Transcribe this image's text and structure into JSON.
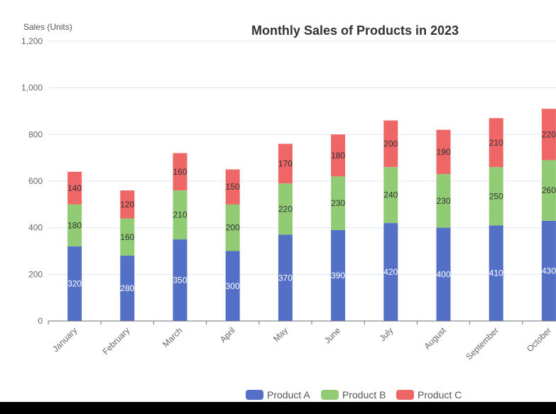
{
  "chart_data": {
    "type": "bar",
    "stacked": true,
    "title": "Monthly Sales of Products in 2023",
    "ylabel": "Sales (Units)",
    "xlabel": "",
    "ylim": [
      0,
      1200
    ],
    "yticks": [
      0,
      200,
      400,
      600,
      800,
      1000,
      1200
    ],
    "ytick_labels": [
      "0",
      "200",
      "400",
      "600",
      "800",
      "1,000",
      "1,200"
    ],
    "grid": true,
    "legend_position": "bottom-center",
    "categories": [
      "January",
      "February",
      "March",
      "April",
      "May",
      "June",
      "July",
      "August",
      "September",
      "October"
    ],
    "series": [
      {
        "name": "Product A",
        "color": "#5470c6",
        "label_color": "#ffffff",
        "values": [
          320,
          280,
          350,
          300,
          370,
          390,
          420,
          400,
          410,
          430
        ]
      },
      {
        "name": "Product B",
        "color": "#91cc75",
        "label_color": "#333333",
        "values": [
          180,
          160,
          210,
          200,
          220,
          230,
          240,
          230,
          250,
          260
        ]
      },
      {
        "name": "Product C",
        "color": "#ee6666",
        "label_color": "#333333",
        "values": [
          140,
          120,
          160,
          150,
          170,
          180,
          200,
          190,
          210,
          220
        ]
      }
    ]
  }
}
